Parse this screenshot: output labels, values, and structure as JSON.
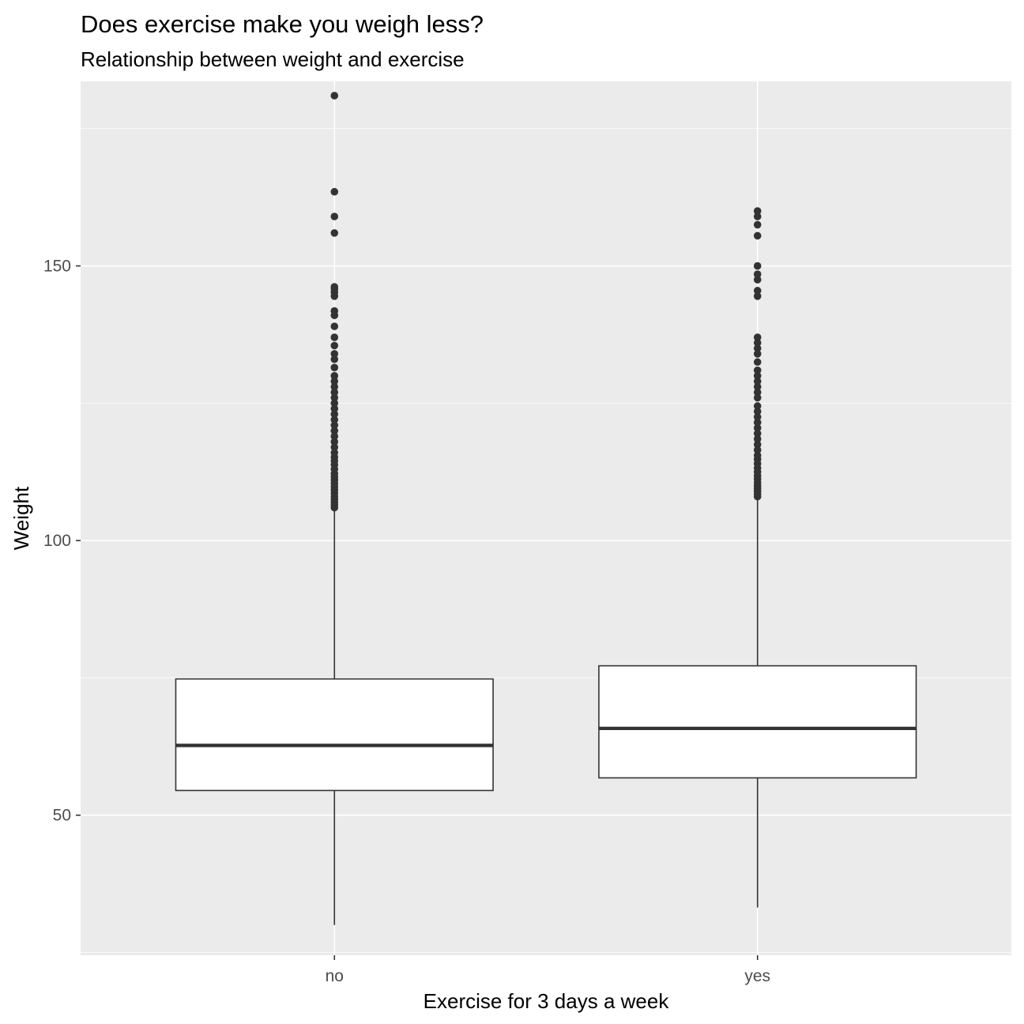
{
  "chart_data": {
    "type": "boxplot",
    "title": "Does exercise make you weigh less?",
    "subtitle": "Relationship between weight and exercise",
    "xlabel": "Exercise for 3 days a week",
    "ylabel": "Weight",
    "ylim": [
      24.5,
      183.6
    ],
    "yticks": [
      50,
      100,
      150
    ],
    "ytick_labels": [
      "50",
      "100",
      "150"
    ],
    "grid": true,
    "categories": [
      "no",
      "yes"
    ],
    "boxes": [
      {
        "category": "no",
        "whisker_low": 30.0,
        "q1": 54.5,
        "median": 62.7,
        "q3": 74.8,
        "whisker_high": 105.5,
        "outliers": [
          106.0,
          106.5,
          107.0,
          107.5,
          108.0,
          108.6,
          109.2,
          109.8,
          110.4,
          111.0,
          111.6,
          112.2,
          113.0,
          113.8,
          114.5,
          115.2,
          116.0,
          117.0,
          118.0,
          119.0,
          120.0,
          121.0,
          122.0,
          123.0,
          124.0,
          125.0,
          126.0,
          127.0,
          128.0,
          129.0,
          130.0,
          131.5,
          133.0,
          134.0,
          135.5,
          137.0,
          139.0,
          141.0,
          141.8,
          144.5,
          145.2,
          145.8,
          146.2,
          156.0,
          159.0,
          163.5,
          181.0
        ]
      },
      {
        "category": "yes",
        "whisker_low": 33.2,
        "q1": 56.8,
        "median": 65.8,
        "q3": 77.2,
        "whisker_high": 107.7,
        "outliers": [
          108.0,
          108.5,
          109.0,
          109.5,
          110.0,
          110.6,
          111.2,
          111.8,
          112.5,
          113.2,
          114.0,
          114.8,
          115.5,
          116.5,
          117.5,
          118.5,
          119.5,
          120.5,
          121.5,
          122.5,
          123.5,
          124.5,
          126.0,
          127.0,
          128.0,
          129.0,
          130.0,
          131.0,
          132.5,
          134.0,
          135.0,
          136.0,
          137.0,
          144.5,
          145.5,
          147.5,
          148.5,
          150.0,
          155.5,
          157.5,
          159.0,
          160.0
        ]
      }
    ]
  }
}
